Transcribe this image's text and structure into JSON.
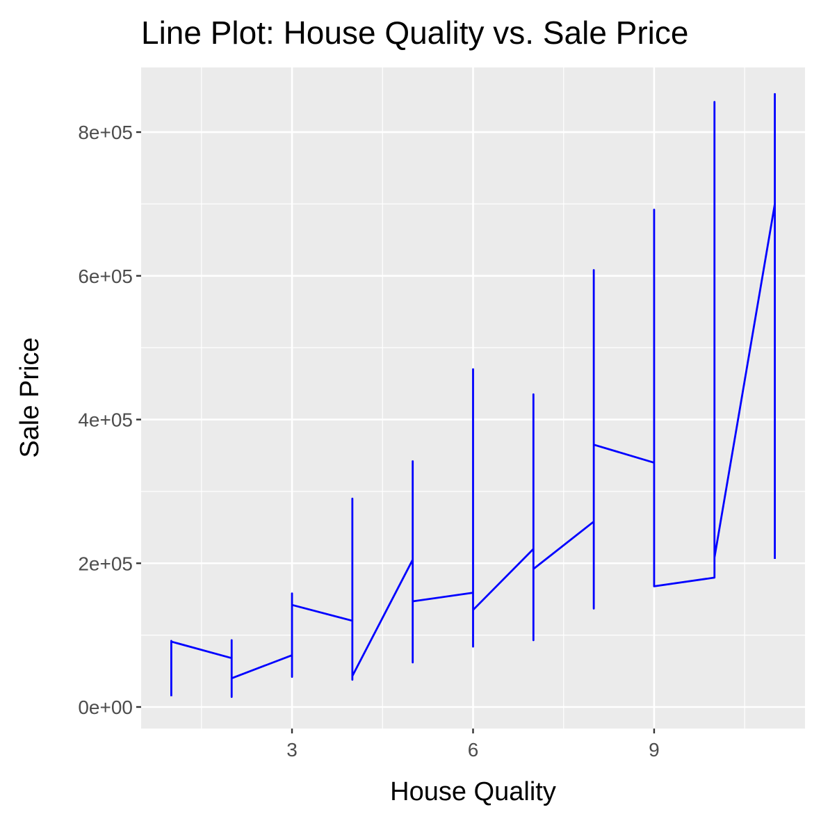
{
  "chart_data": {
    "type": "line",
    "title": "Line Plot: House Quality vs. Sale Price",
    "xlabel": "House Quality",
    "ylabel": "Sale Price",
    "xlim": [
      0.5,
      11.5
    ],
    "ylim": [
      -30000,
      890000
    ],
    "x_ticks": [
      3,
      6,
      9
    ],
    "x_tick_labels": [
      "3",
      "6",
      "9"
    ],
    "x_minor_ticks": [
      1.5,
      4.5,
      7.5,
      10.5
    ],
    "y_ticks": [
      0,
      200000,
      400000,
      600000,
      800000
    ],
    "y_tick_labels": [
      "0e+00",
      "2e+05",
      "4e+05",
      "6e+05",
      "8e+05"
    ],
    "y_minor_ticks": [
      100000,
      300000,
      500000,
      700000
    ],
    "grid": true,
    "line_color": "#0000ff",
    "panel_color": "#ebebeb",
    "series": [
      {
        "x": [
          1,
          1,
          1,
          2,
          2,
          2,
          2,
          3,
          3,
          3,
          3,
          4,
          4,
          4,
          4,
          5,
          5,
          5,
          5,
          6,
          6,
          6,
          6,
          7,
          7,
          7,
          7,
          8,
          8,
          8,
          8,
          9,
          9,
          9,
          10,
          10,
          10,
          10,
          11,
          11,
          11
        ],
        "y": [
          15000,
          92000,
          91000,
          68000,
          93000,
          14000,
          40000,
          72000,
          42000,
          158000,
          142000,
          120000,
          290000,
          38000,
          43000,
          205000,
          342000,
          62000,
          147000,
          159000,
          470000,
          84000,
          135000,
          220000,
          435000,
          93000,
          192000,
          258000,
          608000,
          137000,
          365000,
          340000,
          692000,
          168000,
          180000,
          842000,
          182000,
          208000,
          700000,
          853000,
          206000
        ]
      }
    ]
  }
}
